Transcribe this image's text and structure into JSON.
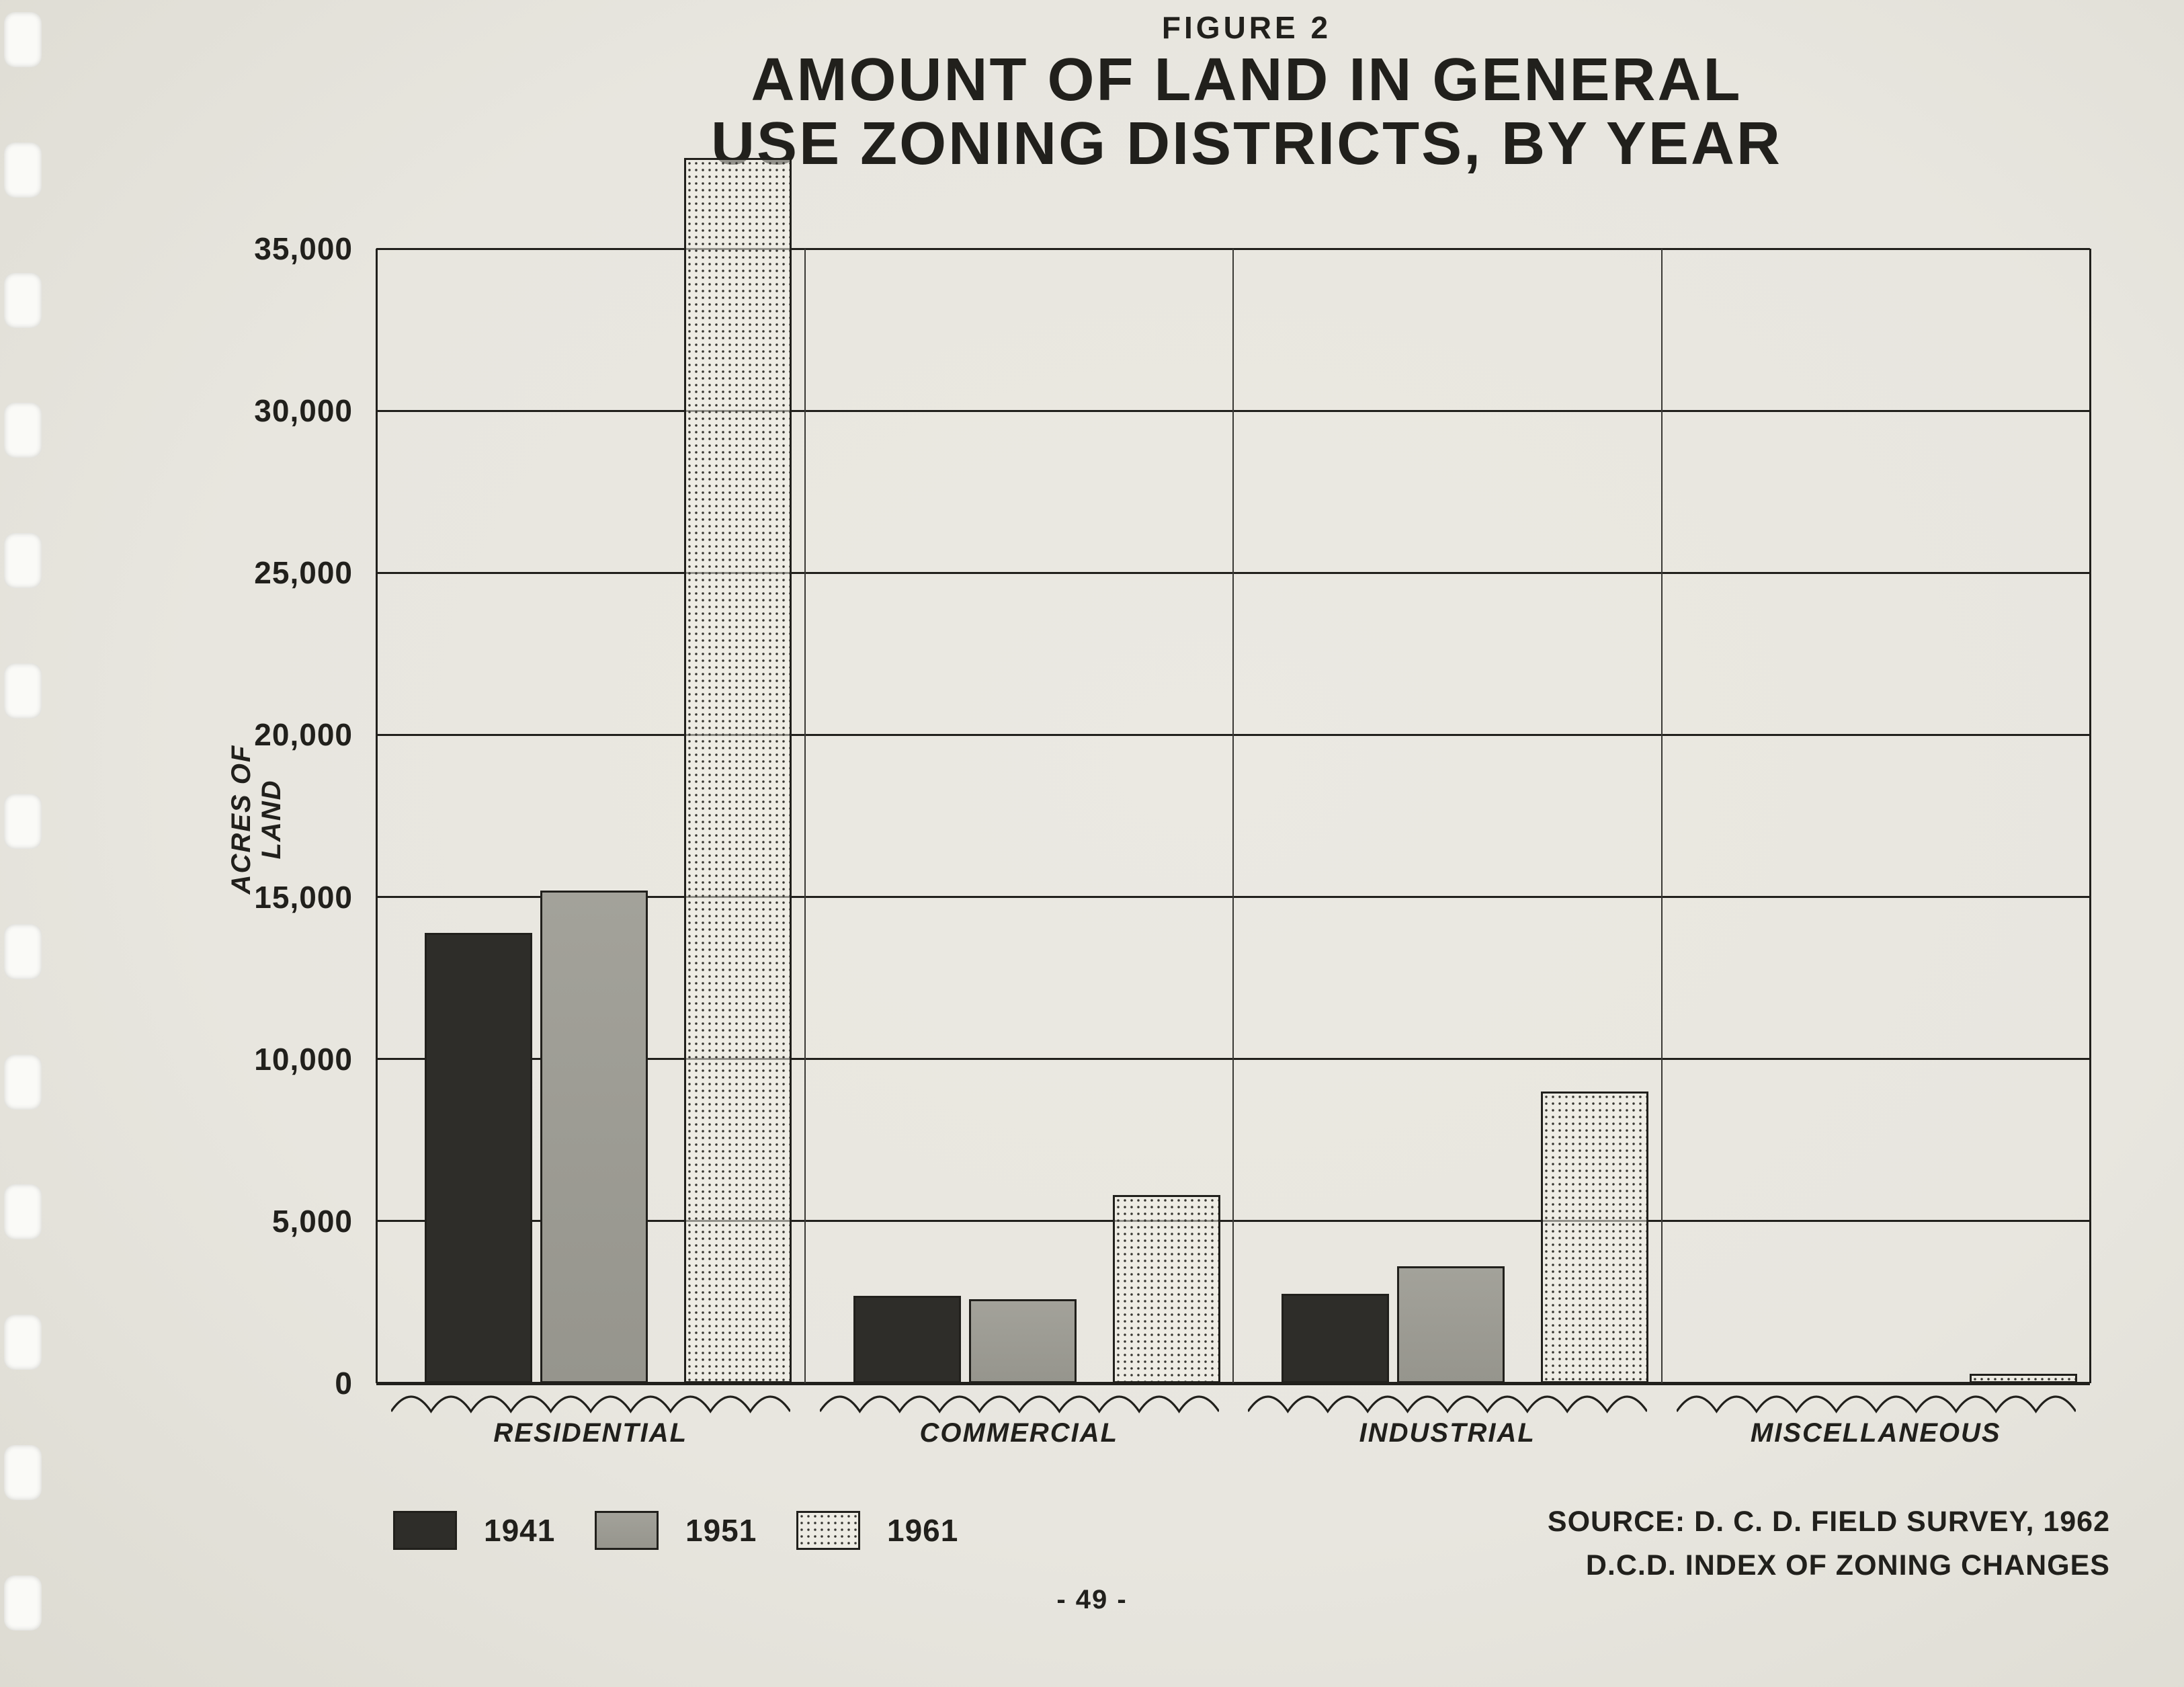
{
  "page": {
    "figure_label": "FIGURE 2",
    "title_line1": "AMOUNT OF LAND IN GENERAL",
    "title_line2": "USE ZONING DISTRICTS, BY YEAR",
    "page_number": "- 49 -",
    "source_line1": "SOURCE:  D. C. D. FIELD SURVEY, 1962",
    "source_line2": "D.C.D. INDEX OF ZONING CHANGES"
  },
  "chart_data": {
    "type": "bar",
    "title": "Amount of Land in General Use Zoning Districts, by Year",
    "xlabel": "",
    "ylabel": "ACRES OF LAND",
    "ylim": [
      0,
      35000
    ],
    "ytick_step": 5000,
    "ytick_labels": [
      "0",
      "5,000",
      "10,000",
      "15,000",
      "20,000",
      "25,000",
      "30,000",
      "35,000"
    ],
    "grid": true,
    "legend_position": "bottom-left",
    "categories": [
      "RESIDENTIAL",
      "COMMERCIAL",
      "INDUSTRIAL",
      "MISCELLANEOUS"
    ],
    "series": [
      {
        "name": "1941",
        "style": "solid-dark",
        "color": "#2e2d29",
        "values": [
          13900,
          2700,
          2750,
          0
        ]
      },
      {
        "name": "1951",
        "style": "solid-gray",
        "color": "#9b9a92",
        "values": [
          15200,
          2600,
          3600,
          0
        ]
      },
      {
        "name": "1961",
        "style": "stipple",
        "color": "#efede3",
        "values": [
          37800,
          5800,
          9000,
          300
        ]
      }
    ]
  },
  "colors": {
    "ink": "#21201c",
    "paper": "#e8e6df"
  }
}
